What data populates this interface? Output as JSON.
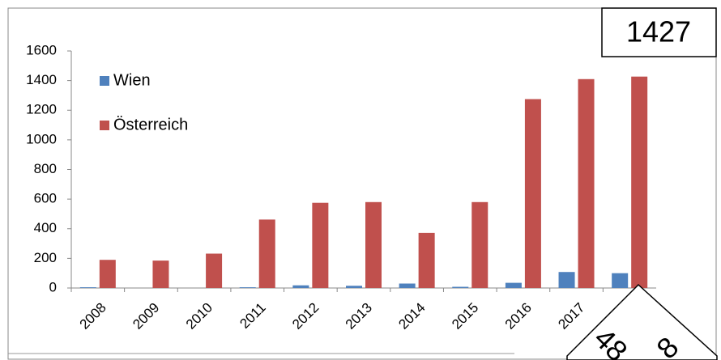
{
  "chart_data": {
    "type": "bar",
    "categories": [
      "2008",
      "2009",
      "2010",
      "2011",
      "2012",
      "2013",
      "2014",
      "2015",
      "2016",
      "2017",
      null
    ],
    "series": [
      {
        "name": "Wien",
        "color": "#4f81bd",
        "values": [
          5,
          0,
          0,
          5,
          18,
          15,
          30,
          8,
          35,
          108,
          100
        ]
      },
      {
        "name": "Österreich",
        "color": "#c0504d",
        "values": [
          190,
          185,
          232,
          462,
          575,
          580,
          372,
          580,
          1275,
          1410,
          1427
        ]
      }
    ],
    "ylim": [
      0,
      1600
    ],
    "yticks": [
      0,
      200,
      400,
      600,
      800,
      1000,
      1200,
      1400,
      1600
    ],
    "legend": "top-left",
    "annotations": [
      "1427",
      "48",
      "8"
    ]
  }
}
